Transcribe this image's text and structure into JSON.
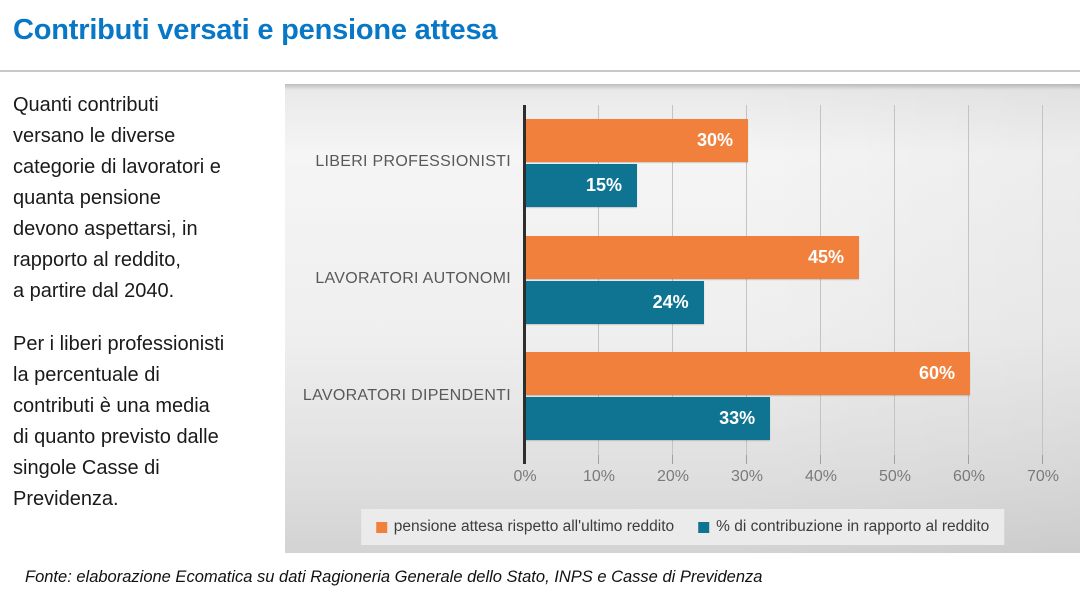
{
  "page": {
    "title": "Contributi versati e pensione attesa",
    "footer": "Fonte: elaborazione Ecomatica su dati Ragioneria Generale dello Stato, INPS e Casse di Previdenza"
  },
  "sidebar": {
    "paragraph1": "Quanti contributi\nversano le diverse\ncategorie di lavoratori e\nquanta pensione\ndevono aspettarsi, in\nrapporto al reddito,\na partire dal 2040.",
    "paragraph2": "Per i liberi professionisti\nla percentuale di\ncontributi è una media\ndi quanto previsto dalle\nsingole Casse di\nPrevidenza."
  },
  "chart_data": {
    "type": "bar",
    "orientation": "horizontal",
    "title": "",
    "categories": [
      "LIBERI PROFESSIONISTI",
      "LAVORATORI AUTONOMI",
      "LAVORATORI DIPENDENTI"
    ],
    "series": [
      {
        "name": "pensione attesa rispetto all'ultimo reddito",
        "color": "#f0803c",
        "values": [
          30,
          45,
          60
        ],
        "labels": [
          "30%",
          "45%",
          "60%"
        ]
      },
      {
        "name": "% di contribuzione in rapporto al reddito",
        "color": "#0e7492",
        "values": [
          15,
          24,
          33
        ],
        "labels": [
          "15%",
          "24%",
          "33%"
        ]
      }
    ],
    "x_ticks": [
      "0%",
      "10%",
      "20%",
      "30%",
      "40%",
      "50%",
      "60%",
      "70%"
    ],
    "xlim": [
      0,
      70
    ],
    "grid": true,
    "legend_position": "bottom",
    "colors": {
      "title_blue": "#0878c6",
      "category_label": "#595959",
      "tick_label": "#7a7a7a",
      "axis": "#2e2e2e",
      "legend_background": "#ebebeb"
    }
  }
}
